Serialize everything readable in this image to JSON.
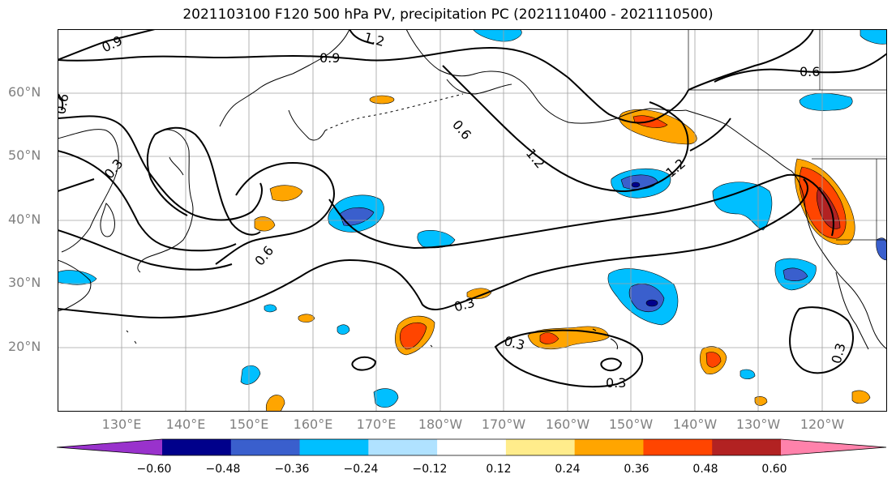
{
  "title": "2021103100 F120 500 hPa PV, precipitation PC (2021110400 - 2021110500)",
  "lat_labels": [
    "60°N",
    "50°N",
    "40°N",
    "30°N",
    "20°N"
  ],
  "lon_labels": [
    "130°E",
    "140°E",
    "150°E",
    "160°E",
    "170°E",
    "180°W",
    "170°W",
    "160°W",
    "150°W",
    "140°W",
    "130°W",
    "120°W"
  ],
  "contour_labels": [
    "0.9",
    "1.2",
    "0.9",
    "0.6",
    "0.6",
    "0.3",
    "0.6",
    "1.2",
    "1.2",
    "0.6",
    "0.3",
    "0.3",
    "0.3",
    "0.3"
  ],
  "colorbar": {
    "tick_labels": [
      "−0.60",
      "−0.48",
      "−0.36",
      "−0.24",
      "−0.12",
      "0.12",
      "0.24",
      "0.36",
      "0.48",
      "0.60"
    ],
    "colors": [
      "#9932cc",
      "#00008b",
      "#3a5fcd",
      "#00bfff",
      "#b0e2ff",
      "#ffffff",
      "#ffec8b",
      "#ffa500",
      "#ff4500",
      "#b22222",
      "#ff82ab"
    ]
  },
  "fill_colors": {
    "light_blue": "#b0e2ff",
    "blue": "#00bfff",
    "mid_blue": "#3a5fcd",
    "navy": "#00008b",
    "light_yellow": "#ffec8b",
    "orange": "#ffa500",
    "red_orange": "#ff4500",
    "dark_red": "#b22222"
  }
}
